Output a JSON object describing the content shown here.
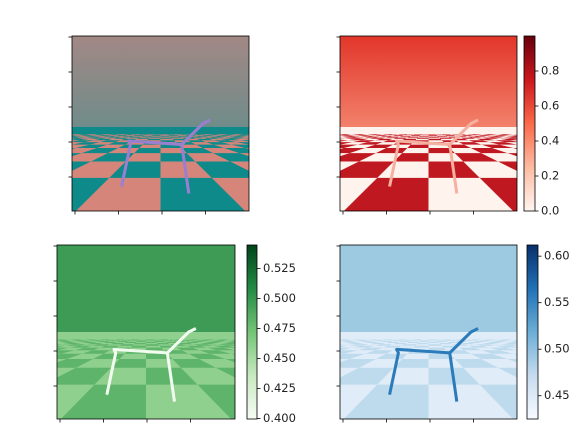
{
  "chart_data": [
    {
      "type": "image"
    },
    {
      "type": "image",
      "colormap": [
        "#fff5f0",
        "#fcbba1",
        "#fb6a4a",
        "#cb181d",
        "#67000d"
      ],
      "ylim": [
        0,
        1.0
      ],
      "yticks": [
        {
          "value": 0,
          "label": "0.0"
        },
        0.2,
        0.4,
        0.6,
        0.8
      ]
    },
    {
      "type": "image",
      "colormap": [
        "#f7fcf5",
        "#c7e9c0",
        "#74c476",
        "#238b45",
        "#00441b"
      ],
      "ylim": [
        0.3995,
        0.5445
      ],
      "yticks": [
        {
          "value": 0.4,
          "label": "0.400"
        },
        0.425,
        {
          "value": 0.45,
          "label": "0.450"
        },
        0.475,
        {
          "value": 0.5,
          "label": "0.500"
        },
        0.525
      ]
    },
    {
      "type": "image",
      "colormap": [
        "#f7fbff",
        "#c6dbef",
        "#6baed6",
        "#2171b5",
        "#08306b"
      ],
      "ylim": [
        0.425,
        0.612
      ],
      "yticks": [
        0.45,
        {
          "value": 0.5,
          "label": "0.50"
        },
        0.55,
        {
          "value": 0.6,
          "label": "0.60"
        }
      ]
    }
  ]
}
